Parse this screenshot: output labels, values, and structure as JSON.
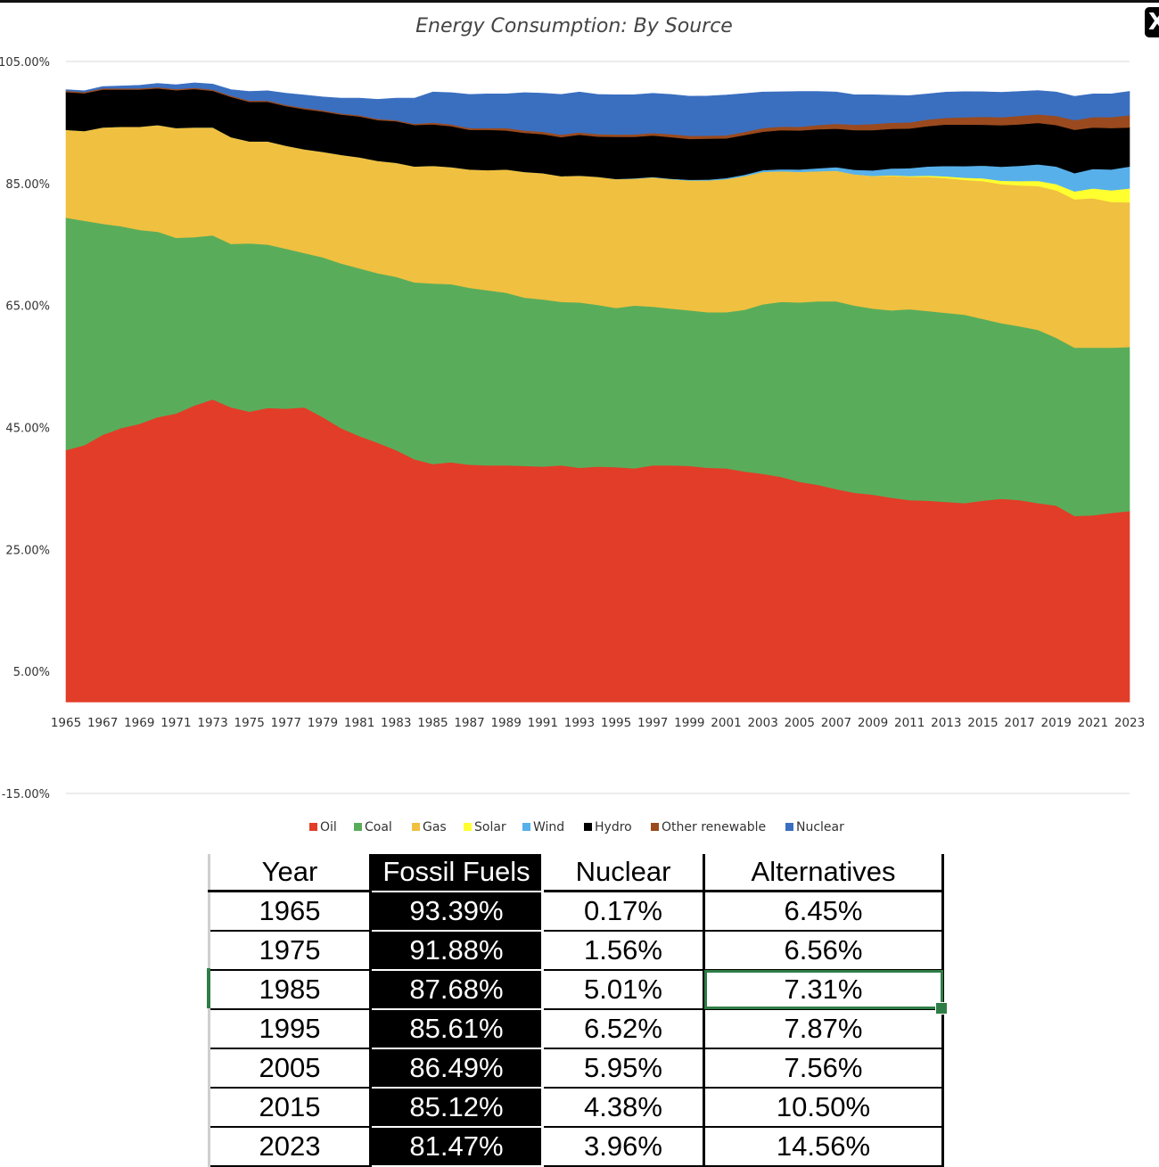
{
  "window": {
    "close_label": "X"
  },
  "colors": {
    "oil": "#e23d28",
    "coal": "#59ad5a",
    "gas": "#f0c040",
    "solar": "#ffff30",
    "wind": "#57b0ea",
    "hydro": "#000000",
    "other_renewable": "#9a4a1e",
    "nuclear": "#3a6fc0"
  },
  "chart_data": {
    "type": "area",
    "stacked": true,
    "title": "Energy Consumption: By Source",
    "xlabel": "",
    "ylabel": "",
    "ylim": [
      -15,
      105
    ],
    "yticks": [
      "105.00%",
      "85.00%",
      "65.00%",
      "45.00%",
      "25.00%",
      "5.00%",
      "-15.00%"
    ],
    "ytick_values": [
      105,
      85,
      65,
      45,
      25,
      5,
      -15
    ],
    "xticks": [
      "1965",
      "1967",
      "1969",
      "1971",
      "1973",
      "1975",
      "1977",
      "1979",
      "1981",
      "1983",
      "1985",
      "1987",
      "1989",
      "1991",
      "1993",
      "1995",
      "1997",
      "1999",
      "2001",
      "2003",
      "2005",
      "2007",
      "2009",
      "2011",
      "2013",
      "2015",
      "2017",
      "2019",
      "2021",
      "2023"
    ],
    "x": [
      1965,
      1966,
      1967,
      1968,
      1969,
      1970,
      1971,
      1972,
      1973,
      1974,
      1975,
      1976,
      1977,
      1978,
      1979,
      1980,
      1981,
      1982,
      1983,
      1984,
      1985,
      1986,
      1987,
      1988,
      1989,
      1990,
      1991,
      1992,
      1993,
      1994,
      1995,
      1996,
      1997,
      1998,
      1999,
      2000,
      2001,
      2002,
      2003,
      2004,
      2005,
      2006,
      2007,
      2008,
      2009,
      2010,
      2011,
      2012,
      2013,
      2014,
      2015,
      2016,
      2017,
      2018,
      2019,
      2020,
      2021,
      2022,
      2023
    ],
    "series": [
      {
        "name": "Oil",
        "color_key": "oil",
        "values": [
          41.3,
          42.1,
          43.8,
          44.9,
          45.6,
          46.7,
          47.3,
          48.6,
          49.6,
          48.3,
          47.6,
          48.2,
          48.1,
          48.3,
          46.7,
          44.9,
          43.6,
          42.5,
          41.3,
          39.8,
          39.0,
          39.3,
          38.9,
          38.8,
          38.8,
          38.7,
          38.6,
          38.8,
          38.4,
          38.6,
          38.5,
          38.3,
          38.8,
          38.8,
          38.7,
          38.4,
          38.3,
          37.8,
          37.4,
          36.9,
          36.1,
          35.6,
          34.9,
          34.3,
          34.0,
          33.5,
          33.1,
          33.0,
          32.8,
          32.6,
          33.0,
          33.3,
          33.1,
          32.6,
          32.2,
          30.5,
          30.6,
          31.0,
          31.3
        ]
      },
      {
        "name": "Coal",
        "color_key": "coal",
        "values": [
          38.1,
          36.8,
          34.6,
          33.1,
          31.8,
          30.4,
          28.8,
          27.6,
          26.9,
          26.8,
          27.6,
          26.8,
          26.2,
          25.3,
          26.2,
          27.0,
          27.5,
          27.8,
          28.4,
          29.0,
          29.6,
          29.2,
          29.0,
          28.7,
          28.3,
          27.6,
          27.4,
          26.8,
          27.1,
          26.5,
          26.1,
          26.7,
          26.0,
          25.7,
          25.5,
          25.5,
          25.6,
          26.5,
          27.8,
          28.7,
          29.4,
          30.1,
          30.8,
          30.7,
          30.5,
          30.7,
          31.3,
          31.1,
          31.0,
          30.9,
          29.8,
          28.8,
          28.5,
          28.4,
          27.5,
          27.6,
          27.5,
          27.1,
          26.9
        ]
      },
      {
        "name": "Gas",
        "color_key": "gas",
        "values": [
          14.4,
          14.7,
          15.8,
          16.3,
          16.9,
          17.5,
          18.0,
          18.0,
          17.7,
          17.5,
          16.7,
          16.9,
          16.9,
          17.0,
          17.3,
          17.8,
          18.2,
          18.4,
          18.7,
          19.0,
          19.3,
          19.2,
          19.4,
          19.7,
          20.2,
          20.6,
          20.7,
          20.6,
          20.8,
          21.0,
          21.1,
          20.8,
          21.2,
          21.2,
          21.3,
          21.6,
          21.8,
          21.9,
          21.7,
          21.4,
          21.4,
          21.3,
          21.4,
          21.5,
          21.7,
          22.1,
          21.7,
          22.0,
          22.1,
          22.1,
          22.6,
          22.8,
          23.1,
          23.6,
          24.2,
          24.3,
          24.5,
          23.9,
          23.7
        ]
      },
      {
        "name": "Solar",
        "color_key": "solar",
        "values": [
          0,
          0,
          0,
          0,
          0,
          0,
          0,
          0,
          0,
          0,
          0,
          0,
          0,
          0,
          0,
          0,
          0,
          0,
          0,
          0,
          0,
          0,
          0,
          0,
          0,
          0,
          0,
          0,
          0,
          0,
          0,
          0,
          0,
          0,
          0,
          0,
          0,
          0,
          0,
          0,
          0,
          0,
          0,
          0,
          0.05,
          0.07,
          0.12,
          0.2,
          0.28,
          0.36,
          0.45,
          0.56,
          0.7,
          0.85,
          1.0,
          1.3,
          1.6,
          1.9,
          2.3
        ]
      },
      {
        "name": "Wind",
        "color_key": "wind",
        "values": [
          0,
          0,
          0,
          0,
          0,
          0,
          0,
          0,
          0,
          0,
          0,
          0,
          0,
          0,
          0,
          0,
          0,
          0,
          0,
          0,
          0,
          0,
          0,
          0,
          0,
          0,
          0,
          0,
          0,
          0,
          0.05,
          0.06,
          0.08,
          0.1,
          0.12,
          0.15,
          0.2,
          0.25,
          0.3,
          0.35,
          0.4,
          0.5,
          0.6,
          0.75,
          0.9,
          1.1,
          1.3,
          1.5,
          1.7,
          1.9,
          2.1,
          2.3,
          2.5,
          2.7,
          2.9,
          3.0,
          3.2,
          3.4,
          3.6
        ]
      },
      {
        "name": "Hydro",
        "color_key": "hydro",
        "values": [
          6.2,
          6.2,
          6.2,
          6.1,
          6.1,
          6.0,
          6.2,
          6.3,
          6.0,
          6.6,
          6.5,
          6.5,
          6.5,
          6.6,
          6.6,
          6.6,
          6.7,
          6.7,
          6.8,
          6.8,
          6.8,
          6.7,
          6.5,
          6.6,
          6.4,
          6.4,
          6.4,
          6.4,
          6.7,
          6.6,
          6.9,
          6.8,
          6.8,
          6.8,
          6.7,
          6.7,
          6.5,
          6.5,
          6.3,
          6.4,
          6.4,
          6.4,
          6.3,
          6.5,
          6.6,
          6.5,
          6.5,
          6.6,
          6.8,
          6.8,
          6.7,
          6.8,
          6.8,
          6.8,
          6.8,
          7.1,
          6.8,
          6.8,
          6.4
        ]
      },
      {
        "name": "Other renewable",
        "color_key": "other_renewable",
        "values": [
          0.2,
          0.2,
          0.2,
          0.2,
          0.2,
          0.2,
          0.2,
          0.2,
          0.2,
          0.2,
          0.2,
          0.2,
          0.2,
          0.2,
          0.2,
          0.2,
          0.2,
          0.2,
          0.2,
          0.2,
          0.3,
          0.3,
          0.3,
          0.3,
          0.4,
          0.4,
          0.4,
          0.4,
          0.4,
          0.4,
          0.4,
          0.4,
          0.4,
          0.5,
          0.5,
          0.5,
          0.5,
          0.5,
          0.6,
          0.6,
          0.6,
          0.7,
          0.8,
          0.9,
          1.0,
          1.0,
          1.0,
          1.1,
          1.1,
          1.2,
          1.3,
          1.3,
          1.4,
          1.4,
          1.5,
          1.6,
          1.7,
          1.8,
          2.0
        ]
      },
      {
        "name": "Nuclear",
        "color_key": "nuclear",
        "values": [
          0.2,
          0.2,
          0.3,
          0.4,
          0.5,
          0.6,
          0.7,
          0.8,
          0.9,
          1.0,
          1.5,
          1.6,
          1.9,
          2.1,
          2.2,
          2.5,
          2.8,
          3.2,
          3.6,
          4.2,
          5.0,
          5.2,
          5.5,
          5.6,
          5.6,
          6.2,
          6.3,
          6.6,
          6.6,
          6.5,
          6.5,
          6.5,
          6.5,
          6.5,
          6.5,
          6.5,
          6.6,
          6.3,
          5.9,
          5.7,
          5.8,
          5.5,
          5.2,
          4.9,
          4.8,
          4.5,
          4.4,
          4.2,
          4.2,
          4.2,
          4.1,
          4.1,
          4.0,
          3.9,
          3.9,
          3.9,
          3.8,
          3.8,
          3.9
        ]
      }
    ],
    "legend_position": "bottom"
  },
  "table": {
    "headers": [
      "Year",
      "Fossil Fuels",
      "Nuclear",
      "Alternatives"
    ],
    "rows": [
      [
        "1965",
        "93.39%",
        "0.17%",
        "6.45%"
      ],
      [
        "1975",
        "91.88%",
        "1.56%",
        "6.56%"
      ],
      [
        "1985",
        "87.68%",
        "5.01%",
        "7.31%"
      ],
      [
        "1995",
        "85.61%",
        "6.52%",
        "7.87%"
      ],
      [
        "2005",
        "86.49%",
        "5.95%",
        "7.56%"
      ],
      [
        "2015",
        "85.12%",
        "4.38%",
        "10.50%"
      ],
      [
        "2023",
        "81.47%",
        "3.96%",
        "14.56%"
      ]
    ],
    "selected_cell": "1985-alternatives"
  }
}
